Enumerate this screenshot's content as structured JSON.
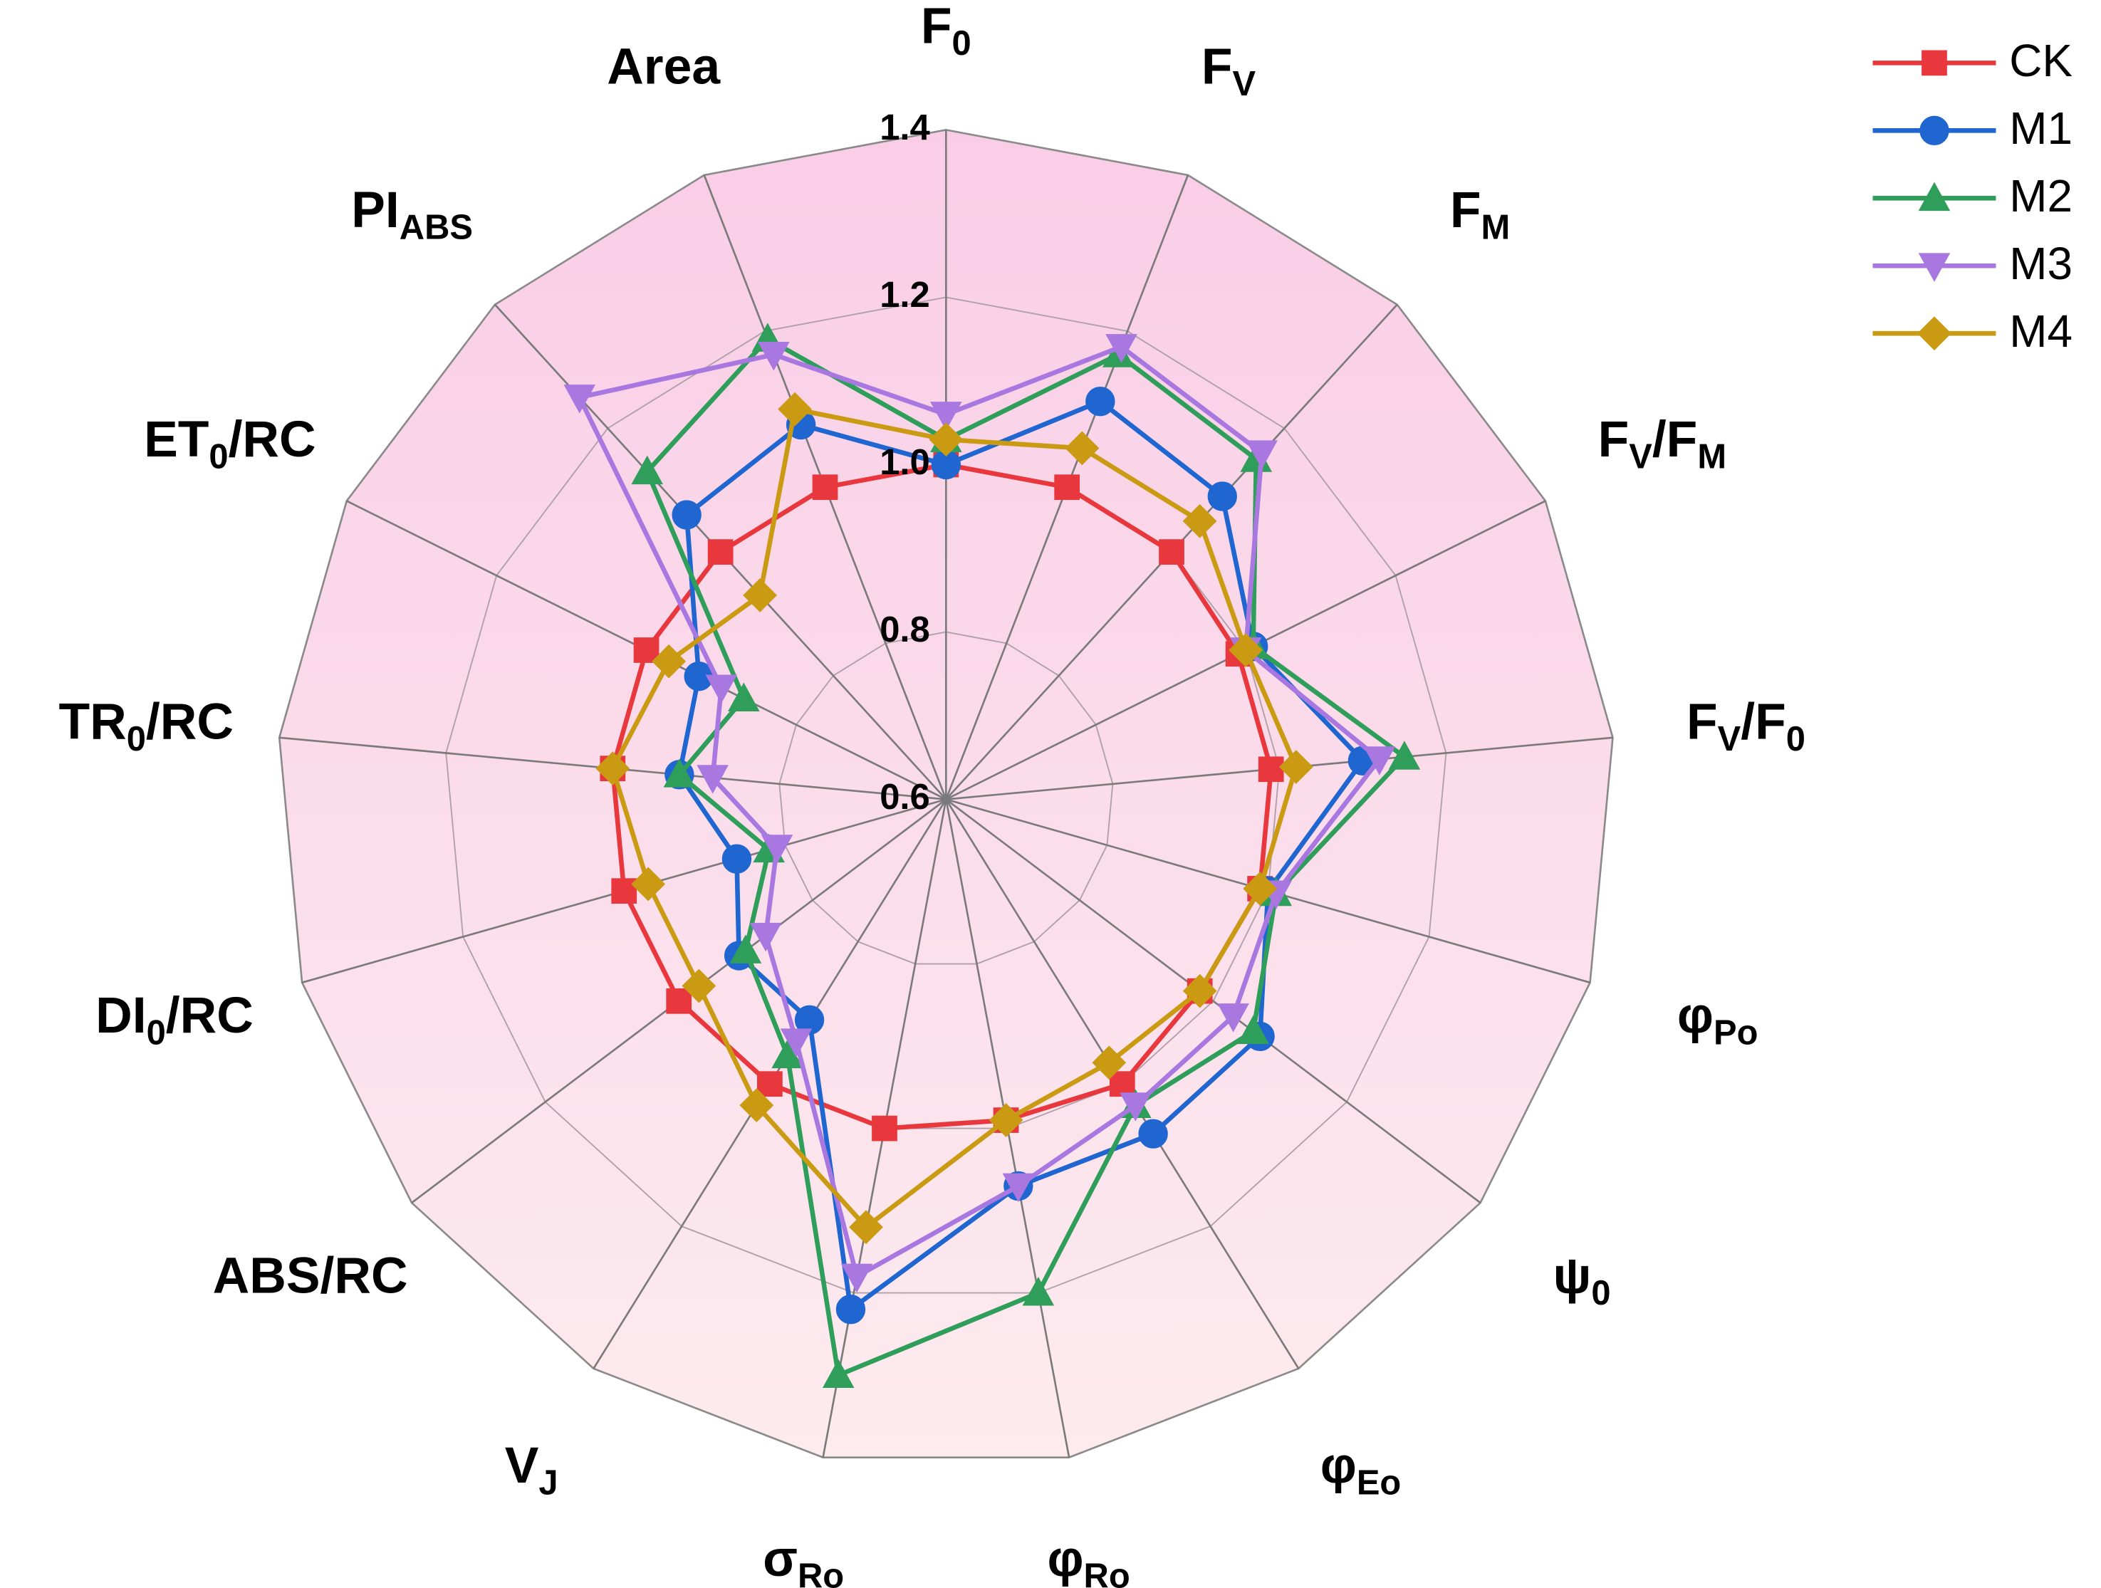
{
  "chart_data": {
    "type": "radar",
    "categories": [
      [
        "F",
        "0"
      ],
      [
        "F",
        "V"
      ],
      [
        "F",
        "M"
      ],
      [
        "F",
        "V",
        "/F",
        "M"
      ],
      [
        "F",
        "V",
        "/F",
        "0"
      ],
      [
        "φ",
        "Po"
      ],
      [
        "ψ",
        "0"
      ],
      [
        "φ",
        "Eo"
      ],
      [
        "φ",
        "Ro"
      ],
      [
        "σ",
        "Ro"
      ],
      [
        "V",
        "J"
      ],
      [
        "ABS/RC"
      ],
      [
        "DI",
        "0",
        "/RC"
      ],
      [
        "TR",
        "0",
        "/RC"
      ],
      [
        "ET",
        "0",
        "/RC"
      ],
      [
        "PI",
        "ABS"
      ],
      [
        "Area"
      ]
    ],
    "ylim": [
      0.6,
      1.4
    ],
    "yticks": [
      0.6,
      {
        "value": 0.8,
        "label": "0.8"
      },
      {
        "value": 1.0,
        "label": "1.0"
      },
      1.2,
      1.4
    ],
    "series": [
      {
        "name": "CK",
        "color": "#e8383d",
        "marker": "square",
        "values": [
          1.0,
          1.0,
          1.0,
          0.99,
          0.99,
          0.99,
          0.98,
          1.0,
          0.99,
          1.0,
          1.0,
          1.0,
          1.0,
          1.0,
          1.0,
          1.0,
          1.0
        ]
      },
      {
        "name": "M1",
        "color": "#1f66d1",
        "marker": "circle",
        "values": [
          1.0,
          1.11,
          1.09,
          1.01,
          1.1,
          1.0,
          1.07,
          1.07,
          1.07,
          1.22,
          0.91,
          0.91,
          0.86,
          0.92,
          0.93,
          1.06,
          1.08
        ]
      },
      {
        "name": "M2",
        "color": "#2e9e5a",
        "marker": "triangle-up",
        "values": [
          1.03,
          1.17,
          1.15,
          1.01,
          1.15,
          1.01,
          1.06,
          1.03,
          1.2,
          1.3,
          0.96,
          0.9,
          0.82,
          0.92,
          0.87,
          1.13,
          1.19
        ]
      },
      {
        "name": "M3",
        "color": "#a877e0",
        "marker": "triangle-down",
        "values": [
          1.06,
          1.18,
          1.16,
          1.0,
          1.12,
          1.01,
          1.03,
          1.03,
          1.07,
          1.18,
          0.94,
          0.87,
          0.81,
          0.88,
          0.9,
          1.25,
          1.17
        ]
      },
      {
        "name": "M4",
        "color": "#c99a12",
        "marker": "diamond",
        "values": [
          1.03,
          1.05,
          1.05,
          1.0,
          1.02,
          0.99,
          0.98,
          0.97,
          0.99,
          1.12,
          1.03,
          0.97,
          0.97,
          1.0,
          0.97,
          0.93,
          1.1
        ]
      }
    ]
  }
}
